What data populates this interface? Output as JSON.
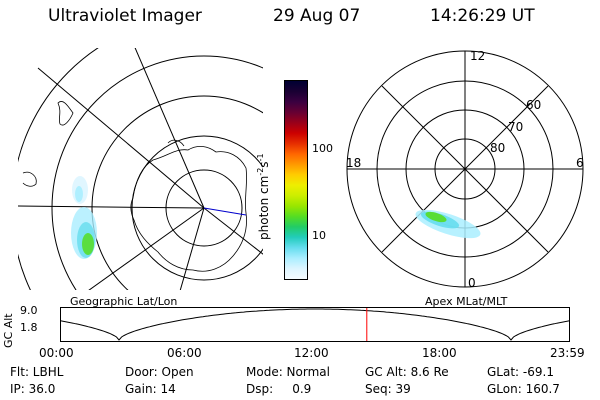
{
  "header": {
    "instrument": "Ultraviolet Imager",
    "date": "29 Aug 07",
    "time": "14:26:29 UT"
  },
  "left_panel": {
    "label": "Geographic Lat/Lon"
  },
  "right_panel": {
    "label": "Apex MLat/MLT",
    "mlt_labels": [
      "12",
      "18",
      "6",
      "0"
    ],
    "lat_labels": [
      "60",
      "70",
      "80"
    ]
  },
  "colorbar": {
    "unit_text": "photon cm",
    "unit_exp1": "-2",
    "unit_mid": "s",
    "unit_exp2": "-1",
    "tick_labels": [
      "100",
      "10"
    ],
    "colors": [
      "#000033",
      "#1a0033",
      "#3a0040",
      "#660033",
      "#99001a",
      "#cc0000",
      "#e62e00",
      "#ff6600",
      "#ff9900",
      "#ffcc00",
      "#eeee00",
      "#ccee00",
      "#99e600",
      "#55dd22",
      "#22cc66",
      "#22ccbb",
      "#66ddee",
      "#aaeeff",
      "#ddf5ff",
      "#f5fbff"
    ]
  },
  "timeline": {
    "axis_title": "GC Alt",
    "y_labels": [
      "9.0",
      "1.8"
    ],
    "x_labels": [
      "00:00",
      "06:00",
      "12:00",
      "18:00",
      "23:59"
    ],
    "marker_time": "14:26",
    "marker_color": "#ff0000"
  },
  "footer": {
    "rows": [
      [
        "Flt: LBHL",
        "Door: Open",
        "Mode: Normal",
        "GC Alt: 8.6 Re",
        "GLat: -69.1"
      ],
      [
        "IP: 36.0",
        "Gain: 14",
        "Dsp:     0.9",
        "Seq: 39",
        "GLon: 160.7"
      ]
    ]
  }
}
